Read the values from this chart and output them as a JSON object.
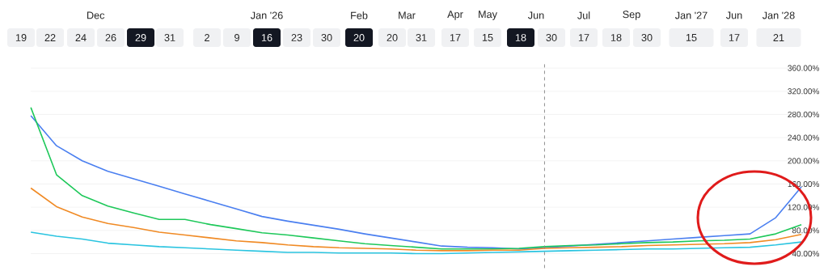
{
  "chart_data": {
    "type": "line",
    "categories": [
      null,
      null,
      null,
      null,
      null,
      null,
      null,
      null,
      null,
      null,
      null,
      null,
      null,
      null,
      null,
      null,
      null,
      null,
      null,
      null,
      null,
      null,
      null,
      null,
      null,
      null,
      null,
      null,
      null,
      null,
      null
    ],
    "series": [
      {
        "color": "#4a7ff0",
        "values": [
          278,
          226,
          200,
          182,
          169,
          156,
          143,
          130,
          117,
          104,
          96,
          89,
          82,
          74,
          67,
          60,
          53,
          51,
          50,
          48,
          50,
          53,
          56,
          59,
          62,
          65,
          68,
          71,
          74,
          102,
          155
        ]
      },
      {
        "color": "#1ec85a",
        "values": [
          292,
          176,
          140,
          122,
          110,
          99,
          99,
          90,
          83,
          76,
          72,
          67,
          62,
          57,
          54,
          51,
          48,
          48,
          48,
          49,
          52,
          54,
          55,
          57,
          59,
          60,
          62,
          63,
          65,
          74,
          90
        ]
      },
      {
        "color": "#f08a24",
        "values": [
          153,
          121,
          103,
          92,
          85,
          77,
          72,
          67,
          62,
          59,
          55,
          52,
          50,
          49,
          48,
          46,
          45,
          45,
          46,
          46,
          49,
          50,
          51,
          52,
          54,
          55,
          56,
          57,
          59,
          64,
          73
        ]
      },
      {
        "color": "#2ac4e0",
        "values": [
          77,
          70,
          65,
          58,
          55,
          52,
          50,
          48,
          46,
          44,
          42,
          42,
          41,
          41,
          41,
          40,
          40,
          41,
          42,
          43,
          44,
          45,
          46,
          47,
          48,
          48,
          49,
          50,
          51,
          55,
          60
        ]
      }
    ],
    "ylim": [
      15,
      368
    ],
    "yticks": [
      {
        "value": 40,
        "label": "40.00%"
      },
      {
        "value": 80,
        "label": "80.00%"
      },
      {
        "value": 120,
        "label": "120.00%"
      },
      {
        "value": 160,
        "label": "160.00%"
      },
      {
        "value": 200,
        "label": "200.00%"
      },
      {
        "value": 240,
        "label": "240.00%"
      },
      {
        "value": 280,
        "label": "280.00%"
      },
      {
        "value": 320,
        "label": "320.00%"
      },
      {
        "value": 360,
        "label": "360.00%"
      }
    ],
    "grid": "y",
    "tick_labels": "y",
    "marker": "none",
    "line_style": "solid",
    "annotations": [
      "Dec",
      "19",
      "22",
      "24",
      "26",
      "29",
      "31",
      "Jan '26",
      "2",
      "9",
      "16",
      "23",
      "30",
      "Feb",
      "20",
      "Mar",
      "20",
      "31",
      "Apr",
      "17",
      "May",
      "15",
      "Jun",
      "18",
      "30",
      "Jul",
      "17",
      "Sep",
      "18",
      "30",
      "Jan '27",
      "15",
      "Jun",
      "17",
      "Jan '28",
      "21"
    ]
  }
}
